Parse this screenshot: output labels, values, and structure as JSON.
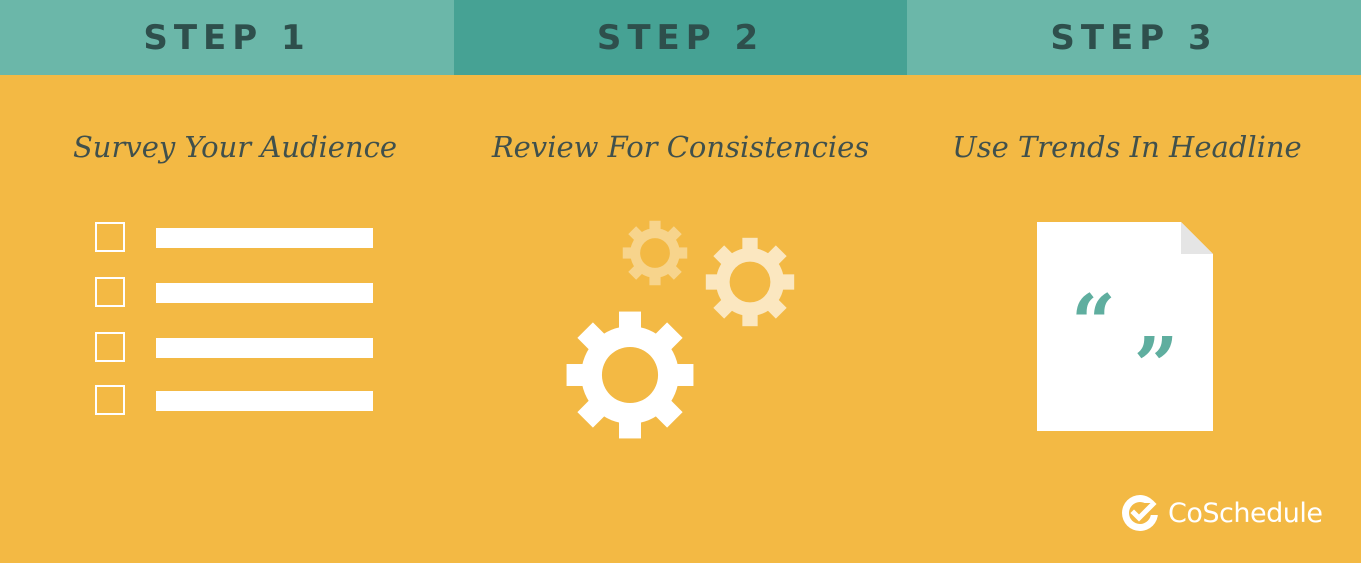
{
  "steps": [
    {
      "label": "STEP 1",
      "title": "Survey Your Audience"
    },
    {
      "label": "STEP 2",
      "title": "Review For Consistencies"
    },
    {
      "label": "STEP 3",
      "title": "Use Trends In Headline"
    }
  ],
  "checklist": {
    "rows": 4
  },
  "quote_marks": {
    "open": "“",
    "close": "„"
  },
  "brand": {
    "name": "CoSchedule"
  },
  "colors": {
    "background": "#f3b944",
    "tab": "#6bb7a9",
    "tab_active": "#46a294",
    "text_dark": "#2e4f4c",
    "icon_white": "#ffffff",
    "quote_teal": "#5fae9f"
  },
  "icons": [
    "checkbox-icon",
    "gear-icon",
    "document-icon",
    "quote-icon",
    "coschedule-logo-icon"
  ]
}
